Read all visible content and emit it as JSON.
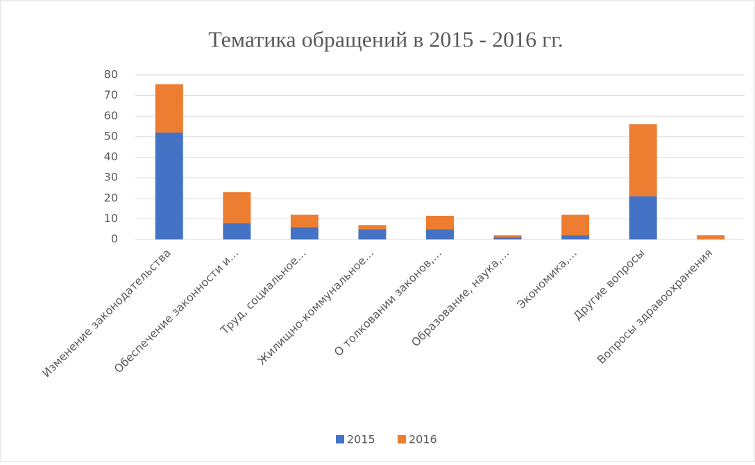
{
  "chart_data": {
    "type": "stacked_bar",
    "title": "Тематика обращений в 2015 - 2016 гг.",
    "categories": [
      "Изменение законодательства",
      "Обеспечение законности и…",
      "Труд, социальное…",
      "Жилищно-коммунальное…",
      "О толковании законов,…",
      "Образование, наука,…",
      "Экономика,…",
      "Другие вопросы",
      "Вопросы здравоохранения"
    ],
    "series": [
      {
        "name": "2015",
        "color": "#4472c4",
        "values": [
          52,
          8,
          6,
          5,
          5,
          1,
          2,
          21,
          0
        ]
      },
      {
        "name": "2016",
        "color": "#ed7d31",
        "values": [
          23.5,
          15,
          6,
          2,
          6.5,
          1,
          10,
          35,
          2
        ]
      }
    ],
    "ylim": [
      0,
      80
    ],
    "yticks": [
      0,
      10,
      20,
      30,
      40,
      50,
      60,
      70,
      80
    ],
    "grid": true,
    "legend": "bottom"
  }
}
